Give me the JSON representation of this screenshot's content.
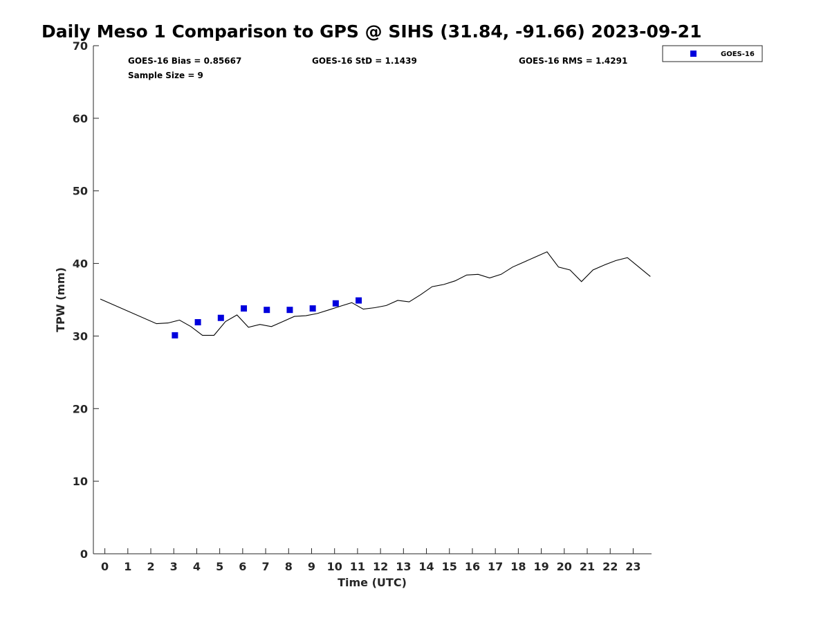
{
  "chart_data": {
    "type": "scatter",
    "title": "Daily Meso 1 Comparison to GPS @ SIHS (31.84, -91.66) 2023-09-21",
    "xlabel": "Time (UTC)",
    "ylabel": "TPW (mm)",
    "xlim": [
      -0.5,
      23.8
    ],
    "ylim": [
      0,
      70
    ],
    "xticks": [
      "0",
      "1",
      "2",
      "3",
      "4",
      "5",
      "6",
      "7",
      "8",
      "9",
      "10",
      "11",
      "12",
      "13",
      "14",
      "15",
      "16",
      "17",
      "18",
      "19",
      "20",
      "21",
      "22",
      "23"
    ],
    "yticks": [
      "0",
      "10",
      "20",
      "30",
      "40",
      "50",
      "60",
      "70"
    ],
    "grid": false,
    "legend_position": "outside top-right",
    "stats": {
      "bias": "GOES-16 Bias = 0.85667",
      "std": "GOES-16 StD = 1.1439",
      "rms": "GOES-16 RMS = 1.4291",
      "sample": "Sample Size = 9"
    },
    "series": [
      {
        "name": "GOES-16",
        "type": "scatter",
        "color": "#0000dd",
        "marker": "square",
        "points": [
          [
            3.05,
            30.1
          ],
          [
            4.05,
            31.9
          ],
          [
            5.05,
            32.5
          ],
          [
            6.05,
            33.8
          ],
          [
            7.05,
            33.6
          ],
          [
            8.05,
            33.6
          ],
          [
            9.05,
            33.8
          ],
          [
            10.05,
            34.5
          ],
          [
            11.05,
            34.9
          ]
        ]
      },
      {
        "type": "line",
        "color": "#000000",
        "points": [
          [
            -0.2,
            35.1
          ],
          [
            2.25,
            31.7
          ],
          [
            2.75,
            31.8
          ],
          [
            3.25,
            32.2
          ],
          [
            3.75,
            31.3
          ],
          [
            4.25,
            30.1
          ],
          [
            4.75,
            30.1
          ],
          [
            5.25,
            32.0
          ],
          [
            5.75,
            32.9
          ],
          [
            6.25,
            31.2
          ],
          [
            6.75,
            31.6
          ],
          [
            7.25,
            31.3
          ],
          [
            7.75,
            32.0
          ],
          [
            8.25,
            32.7
          ],
          [
            8.75,
            32.8
          ],
          [
            9.25,
            33.1
          ],
          [
            9.75,
            33.6
          ],
          [
            10.25,
            34.1
          ],
          [
            10.75,
            34.6
          ],
          [
            11.25,
            33.7
          ],
          [
            11.75,
            33.9
          ],
          [
            12.25,
            34.2
          ],
          [
            12.75,
            34.9
          ],
          [
            13.25,
            34.7
          ],
          [
            13.75,
            35.7
          ],
          [
            14.25,
            36.8
          ],
          [
            14.75,
            37.1
          ],
          [
            15.25,
            37.6
          ],
          [
            15.75,
            38.4
          ],
          [
            16.25,
            38.5
          ],
          [
            16.75,
            38.0
          ],
          [
            17.25,
            38.5
          ],
          [
            17.75,
            39.5
          ],
          [
            18.25,
            40.2
          ],
          [
            18.75,
            40.9
          ],
          [
            19.25,
            41.6
          ],
          [
            19.75,
            39.5
          ],
          [
            20.25,
            39.1
          ],
          [
            20.75,
            37.5
          ],
          [
            21.25,
            39.1
          ],
          [
            21.75,
            39.8
          ],
          [
            22.25,
            40.4
          ],
          [
            22.75,
            40.8
          ],
          [
            23.25,
            39.5
          ],
          [
            23.75,
            38.2
          ]
        ]
      }
    ]
  }
}
